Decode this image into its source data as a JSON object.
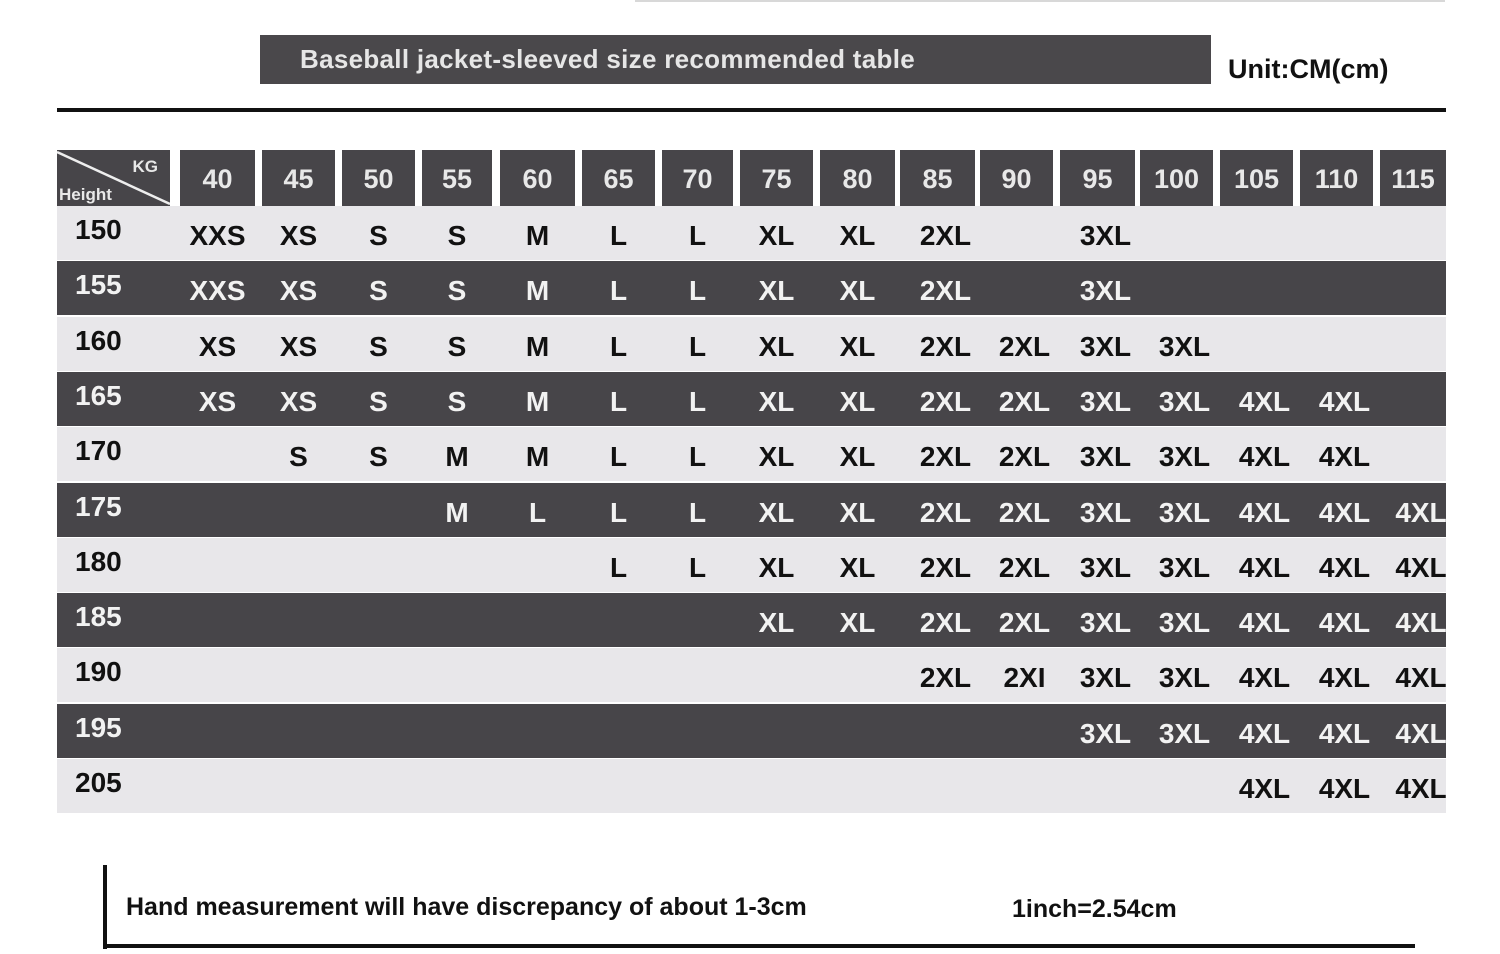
{
  "title": "Baseball jacket-sleeved size recommended table",
  "unit": "Unit:CM(cm)",
  "table": {
    "corner_top": "KG",
    "corner_bottom": "Height",
    "weights": [
      "40",
      "45",
      "50",
      "55",
      "60",
      "65",
      "70",
      "75",
      "80",
      "85",
      "90",
      "95",
      "100",
      "105",
      "110",
      "115"
    ],
    "rows": [
      {
        "height": "150",
        "sizes": [
          "XXS",
          "XS",
          "S",
          "S",
          "M",
          "L",
          "L",
          "XL",
          "XL",
          "2XL",
          "",
          "3XL",
          "",
          "",
          "",
          ""
        ]
      },
      {
        "height": "155",
        "sizes": [
          "XXS",
          "XS",
          "S",
          "S",
          "M",
          "L",
          "L",
          "XL",
          "XL",
          "2XL",
          "",
          "3XL",
          "",
          "",
          "",
          ""
        ]
      },
      {
        "height": "160",
        "sizes": [
          "XS",
          "XS",
          "S",
          "S",
          "M",
          "L",
          "L",
          "XL",
          "XL",
          "2XL",
          "2XL",
          "3XL",
          "3XL",
          "",
          "",
          ""
        ]
      },
      {
        "height": "165",
        "sizes": [
          "XS",
          "XS",
          "S",
          "S",
          "M",
          "L",
          "L",
          "XL",
          "XL",
          "2XL",
          "2XL",
          "3XL",
          "3XL",
          "4XL",
          "4XL",
          ""
        ]
      },
      {
        "height": "170",
        "sizes": [
          "",
          "S",
          "S",
          "M",
          "M",
          "L",
          "L",
          "XL",
          "XL",
          "2XL",
          "2XL",
          "3XL",
          "3XL",
          "4XL",
          "4XL",
          ""
        ]
      },
      {
        "height": "175",
        "sizes": [
          "",
          "",
          "",
          "M",
          "L",
          "L",
          "L",
          "XL",
          "XL",
          "2XL",
          "2XL",
          "3XL",
          "3XL",
          "4XL",
          "4XL",
          "4XL"
        ]
      },
      {
        "height": "180",
        "sizes": [
          "",
          "",
          "",
          "",
          "",
          "L",
          "L",
          "XL",
          "XL",
          "2XL",
          "2XL",
          "3XL",
          "3XL",
          "4XL",
          "4XL",
          "4XL"
        ]
      },
      {
        "height": "185",
        "sizes": [
          "",
          "",
          "",
          "",
          "",
          "",
          "",
          "XL",
          "XL",
          "2XL",
          "2XL",
          "3XL",
          "3XL",
          "4XL",
          "4XL",
          "4XL"
        ]
      },
      {
        "height": "190",
        "sizes": [
          "",
          "",
          "",
          "",
          "",
          "",
          "",
          "",
          "",
          "2XL",
          "2XI",
          "3XL",
          "3XL",
          "4XL",
          "4XL",
          "4XL"
        ]
      },
      {
        "height": "195",
        "sizes": [
          "",
          "",
          "",
          "",
          "",
          "",
          "",
          "",
          "",
          "",
          "",
          "3XL",
          "3XL",
          "4XL",
          "4XL",
          "4XL"
        ]
      },
      {
        "height": "205",
        "sizes": [
          "",
          "",
          "",
          "",
          "",
          "",
          "",
          "",
          "",
          "",
          "",
          "",
          "",
          "4XL",
          "4XL",
          "4XL"
        ]
      }
    ]
  },
  "footer": {
    "note": "Hand measurement will have discrepancy of about  1-3cm",
    "conversion": "1inch=2.54cm"
  },
  "colors": {
    "dark": "#474549",
    "light": "#e8e7ea"
  }
}
